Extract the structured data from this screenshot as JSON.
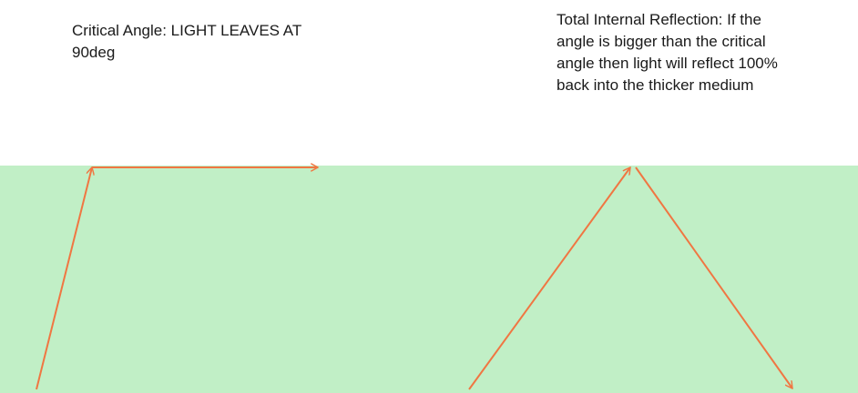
{
  "captions": {
    "critical_angle": "Critical Angle: LIGHT LEAVES AT\n90deg",
    "total_internal_reflection": "Total Internal Reflection: If the\nangle is bigger than the critical\nangle then light will reflect 100%\nback into the thicker medium"
  },
  "colors": {
    "background": "#ffffff",
    "medium": "#c1efc6",
    "ray": "#f07642",
    "text": "#1a1a1a"
  }
}
